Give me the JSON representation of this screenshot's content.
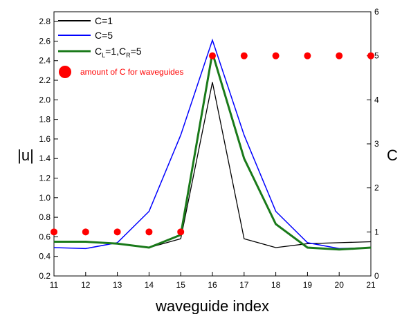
{
  "chart_data": {
    "type": "line",
    "xlabel": "waveguide index",
    "ylabel_left": "|u|",
    "ylabel_right": "C",
    "x": [
      11,
      12,
      13,
      14,
      15,
      16,
      17,
      18,
      19,
      20,
      21
    ],
    "xlim": [
      11,
      21
    ],
    "ylim_left": [
      0.2,
      2.9
    ],
    "ylim_right": [
      0,
      6
    ],
    "left_ticks": [
      "0.2",
      "0.4",
      "0.6",
      "0.8",
      "1.0",
      "1.2",
      "1.4",
      "1.6",
      "1.8",
      "2.0",
      "2.2",
      "2.4",
      "2.6",
      "2.8"
    ],
    "right_ticks": [
      "0",
      "1",
      "2",
      "3",
      "4",
      "5",
      "6"
    ],
    "x_ticks": [
      "11",
      "12",
      "13",
      "14",
      "15",
      "16",
      "17",
      "18",
      "19",
      "20",
      "21"
    ],
    "series": [
      {
        "name": "C=1",
        "axis": "left",
        "color": "#000000",
        "style": "line",
        "values": [
          0.55,
          0.55,
          0.53,
          0.49,
          0.58,
          2.18,
          0.58,
          0.49,
          0.53,
          0.54,
          0.55
        ]
      },
      {
        "name": "C=5",
        "axis": "left",
        "color": "#0000ff",
        "style": "line",
        "values": [
          0.49,
          0.48,
          0.54,
          0.86,
          1.64,
          2.61,
          1.64,
          0.86,
          0.54,
          0.48,
          0.49
        ]
      },
      {
        "name": "C_L=1,C_R=5",
        "axis": "left",
        "color": "#1a7a1a",
        "style": "line",
        "values": [
          0.55,
          0.55,
          0.53,
          0.49,
          0.62,
          2.48,
          1.4,
          0.73,
          0.49,
          0.47,
          0.49
        ]
      },
      {
        "name": "amount of C for waveguides",
        "axis": "right",
        "color": "#ff0000",
        "style": "dots",
        "values": [
          1,
          1,
          1,
          1,
          1,
          5,
          5,
          5,
          5,
          5,
          5
        ]
      }
    ],
    "legend": {
      "position": "top-left",
      "c1": "C=1",
      "c5": "C=5",
      "clcr_c1": "C",
      "clcr_sub_l": "L",
      "clcr_mid": "=1,C",
      "clcr_sub_r": "R",
      "clcr_end": "=5",
      "amount": "amount of C for waveguides"
    }
  }
}
